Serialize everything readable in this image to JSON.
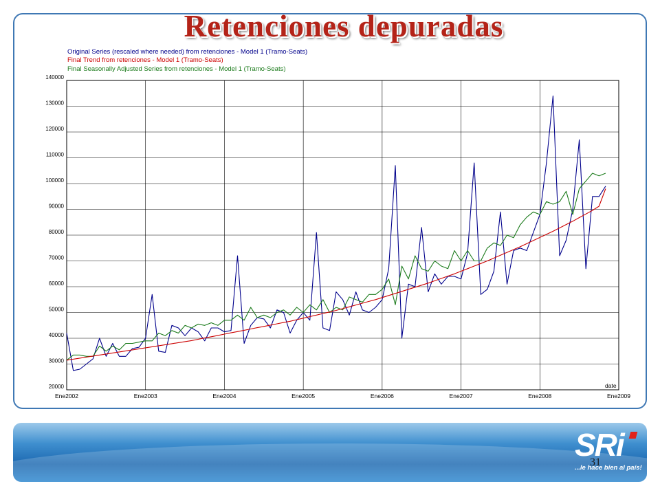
{
  "slide": {
    "title": "Retenciones depuradas",
    "page_number": "31",
    "logo_text": "SRi",
    "logo_slogan": "...le hace bien al país!"
  },
  "chart_data": {
    "type": "line",
    "title": "",
    "xlabel": "date",
    "ylabel": "",
    "ylim": [
      20000,
      140000
    ],
    "y_ticks": [
      "140000",
      "130000",
      "120000",
      "110000",
      "100000",
      "90000",
      "80000",
      "70000",
      "60000",
      "50000",
      "40000",
      "30000",
      "20000"
    ],
    "x_tick_labels": [
      "Ene2002",
      "Ene2003",
      "Ene2004",
      "Ene2005",
      "Ene2006",
      "Ene2007",
      "Ene2008",
      "Ene2009"
    ],
    "x_start_year": 2002,
    "x_end_year": 2009,
    "grid": true,
    "legend_position": "top-left",
    "series": [
      {
        "name": "Original Series (rescaled where needed) from retenciones - Model 1 (Tramo-Seats)",
        "color": "#00008b",
        "values": [
          42000,
          27500,
          28000,
          30000,
          32000,
          40000,
          33000,
          38000,
          33000,
          33000,
          36000,
          36500,
          40000,
          57000,
          35000,
          34500,
          45000,
          44000,
          41000,
          44000,
          42500,
          39000,
          44000,
          44000,
          42500,
          43000,
          72000,
          38000,
          45000,
          48000,
          47500,
          44000,
          51000,
          50000,
          42000,
          47000,
          50000,
          47000,
          81000,
          44000,
          43000,
          58000,
          55000,
          49000,
          58000,
          51000,
          50000,
          52000,
          55000,
          67000,
          107000,
          40000,
          61000,
          60000,
          83000,
          58000,
          65000,
          61000,
          64000,
          64000,
          63000,
          73000,
          108000,
          57000,
          59000,
          66000,
          89000,
          61000,
          74000,
          75000,
          74000,
          81000,
          88000,
          108000,
          134000,
          72000,
          78000,
          90000,
          117000,
          67000,
          95000,
          95000,
          99000
        ],
        "__note": ""
      },
      {
        "name": "Final Trend from retenciones - Model 1 (Tramo-Seats)",
        "color": "#cc0000",
        "values": [
          31500,
          31900,
          32300,
          32700,
          33100,
          33500,
          33900,
          34300,
          34700,
          35100,
          35500,
          35900,
          36300,
          36700,
          37100,
          37500,
          37900,
          38300,
          38700,
          39100,
          39600,
          40100,
          40600,
          41100,
          41600,
          42100,
          42600,
          43100,
          43600,
          44100,
          44600,
          45100,
          45600,
          46100,
          46600,
          47200,
          47800,
          48400,
          49000,
          49600,
          50200,
          50800,
          51500,
          52200,
          52900,
          53600,
          54300,
          55000,
          55800,
          56600,
          57400,
          58200,
          59000,
          59800,
          60600,
          61400,
          62300,
          63200,
          64100,
          65000,
          66000,
          67000,
          68000,
          69000,
          70000,
          71100,
          72200,
          73300,
          74400,
          75500,
          76700,
          77900,
          79100,
          80300,
          81500,
          82800,
          84100,
          85400,
          86800,
          88200,
          89600,
          91200,
          98000
        ]
      },
      {
        "name": "Final Seasonally Adjusted Series from retenciones - Model 1 (Tramo-Seats)",
        "color": "#1a7a1a",
        "values": [
          31500,
          33500,
          33500,
          33000,
          33000,
          37000,
          35000,
          37000,
          35500,
          38000,
          38000,
          38500,
          39000,
          39000,
          42000,
          41000,
          43000,
          42000,
          45000,
          44000,
          45500,
          45000,
          46000,
          45000,
          47000,
          47000,
          49000,
          47000,
          52000,
          48000,
          49000,
          48000,
          50000,
          51000,
          49000,
          52000,
          50000,
          53000,
          51000,
          55000,
          50000,
          52000,
          51000,
          56000,
          55000,
          54000,
          57000,
          57000,
          59000,
          63000,
          53000,
          68000,
          63000,
          72000,
          67000,
          66000,
          70000,
          68000,
          67000,
          74000,
          70000,
          74000,
          70000,
          70000,
          75000,
          77000,
          76000,
          80000,
          79000,
          84000,
          87000,
          89000,
          88000,
          93000,
          92000,
          93000,
          97000,
          88000,
          98000,
          101000,
          104000,
          103000,
          104000
        ]
      }
    ]
  }
}
